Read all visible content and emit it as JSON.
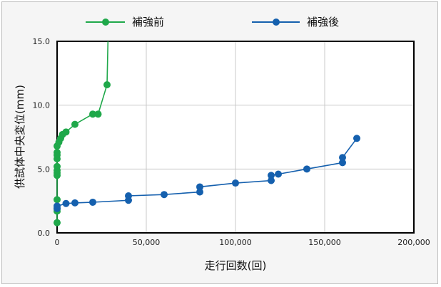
{
  "chart_data": {
    "type": "line",
    "xlabel": "走行回数(回)",
    "ylabel": "供試体中央変位(mm)",
    "xlim": [
      0,
      200000
    ],
    "ylim": [
      0,
      15
    ],
    "x_ticks": [
      "0",
      "50,000",
      "100,000",
      "150,000",
      "200,000"
    ],
    "y_ticks": [
      "0.0",
      "5.0",
      "10.0",
      "15.0"
    ],
    "grid": true,
    "legend_position": "top",
    "series": [
      {
        "name": "補強前",
        "color": "#1fa84a",
        "points": [
          [
            0,
            0.8
          ],
          [
            0,
            1.7
          ],
          [
            0,
            1.9
          ],
          [
            0,
            2.6
          ],
          [
            0,
            4.5
          ],
          [
            0,
            4.7
          ],
          [
            0,
            4.9
          ],
          [
            0,
            5.2
          ],
          [
            0,
            5.8
          ],
          [
            0,
            6.1
          ],
          [
            0,
            6.3
          ],
          [
            0,
            6.8
          ],
          [
            1000,
            7.1
          ],
          [
            2000,
            7.4
          ],
          [
            3000,
            7.7
          ],
          [
            5000,
            7.9
          ],
          [
            10000,
            8.5
          ],
          [
            20000,
            9.3
          ],
          [
            23000,
            9.3
          ],
          [
            28000,
            11.6
          ],
          [
            28500,
            15.0
          ]
        ]
      },
      {
        "name": "補強後",
        "color": "#1560ae",
        "points": [
          [
            0,
            1.9
          ],
          [
            0,
            2.1
          ],
          [
            5000,
            2.3
          ],
          [
            10000,
            2.35
          ],
          [
            20000,
            2.4
          ],
          [
            40000,
            2.55
          ],
          [
            40000,
            2.9
          ],
          [
            60000,
            3.0
          ],
          [
            80000,
            3.2
          ],
          [
            80000,
            3.6
          ],
          [
            100000,
            3.9
          ],
          [
            120000,
            4.1
          ],
          [
            120000,
            4.5
          ],
          [
            124000,
            4.6
          ],
          [
            140000,
            5.0
          ],
          [
            160000,
            5.5
          ],
          [
            160000,
            5.9
          ],
          [
            168000,
            7.4
          ]
        ]
      }
    ]
  }
}
